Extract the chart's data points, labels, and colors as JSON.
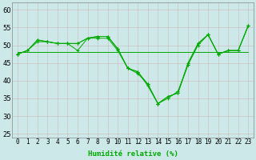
{
  "xlabel": "Humidité relative (%)",
  "bg_color": "#cce8e8",
  "grid_color": "#bbcccc",
  "line_color": "#00aa00",
  "ylim": [
    24,
    62
  ],
  "yticks": [
    25,
    30,
    35,
    40,
    45,
    50,
    55,
    60
  ],
  "xlim": [
    -0.5,
    23.5
  ],
  "xticks": [
    0,
    1,
    2,
    3,
    4,
    5,
    6,
    7,
    8,
    9,
    10,
    11,
    12,
    13,
    14,
    15,
    16,
    17,
    18,
    19,
    20,
    21,
    22,
    23
  ],
  "line1": [
    47.5,
    48.5,
    51.5,
    51.0,
    50.5,
    50.5,
    50.5,
    52.0,
    52.5,
    52.5,
    49.0,
    43.5,
    42.5,
    38.5,
    33.5,
    35.5,
    36.5,
    45.0,
    50.5,
    53.0,
    47.5,
    48.5,
    48.5,
    55.5
  ],
  "line2": [
    47.5,
    48.5,
    51.5,
    51.0,
    50.5,
    50.5,
    48.5,
    52.0,
    52.0,
    52.0,
    48.5,
    43.5,
    42.0,
    39.0,
    33.5,
    35.0,
    37.0,
    44.5,
    50.0,
    53.0,
    47.5,
    48.5,
    48.5,
    55.5
  ],
  "line3": [
    47.5,
    48.5,
    51.0,
    51.0,
    50.5,
    50.5,
    50.5,
    52.0,
    52.5,
    52.5,
    49.0,
    43.5,
    42.5,
    39.0,
    33.5,
    35.5,
    36.5,
    44.5,
    50.5,
    53.0,
    47.5,
    48.5,
    48.5,
    55.5
  ],
  "flat_line": [
    48.0,
    48.0,
    48.0,
    48.0,
    48.0,
    48.0,
    48.0,
    48.0,
    48.0,
    48.0,
    48.0,
    48.0,
    48.0,
    48.0,
    48.0,
    48.0,
    48.0,
    48.0,
    48.0,
    48.0,
    48.0,
    48.0,
    48.0,
    48.0
  ],
  "xlabel_color": "#00aa00",
  "xlabel_fontsize": 6.5,
  "tick_fontsize": 5.5,
  "ytick_fontsize": 6.0
}
